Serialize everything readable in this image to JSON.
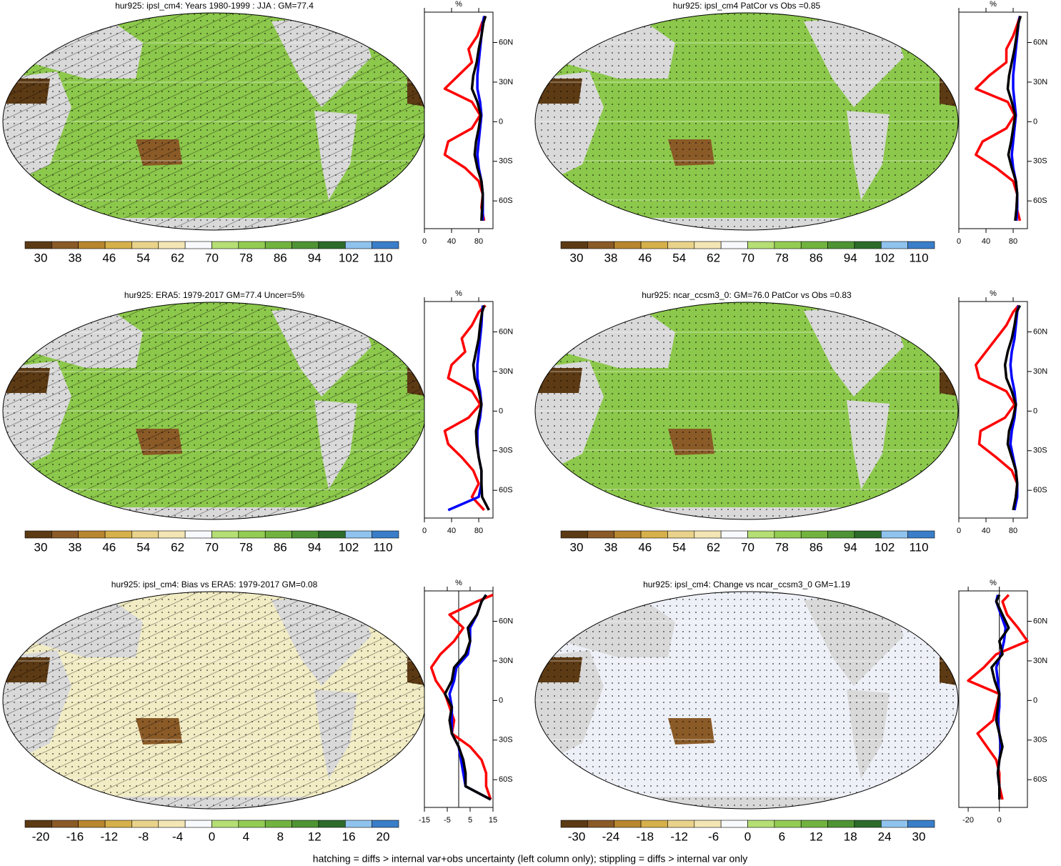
{
  "chart_data": [
    {
      "type": "map",
      "title": "hur925: ipsl_cm4: Years 1980-1999 : JJA : GM=77.4",
      "colorbar": {
        "ticks": [
          30,
          38,
          46,
          54,
          62,
          70,
          78,
          86,
          94,
          102,
          110
        ],
        "colors": [
          "#5c3a14",
          "#8a5a27",
          "#b8862e",
          "#d6b04a",
          "#e9d28a",
          "#f3e6b4",
          "#f7f9fc",
          "#b5df74",
          "#93cc52",
          "#72b340",
          "#4f9434",
          "#2d6b2a",
          "#8fc3ee",
          "#3a7ec9"
        ]
      }
    },
    {
      "type": "line",
      "ylabel": "%",
      "x": [
        -75,
        -65,
        -55,
        -45,
        -35,
        -25,
        -15,
        -5,
        5,
        15,
        25,
        35,
        45,
        55,
        65,
        75,
        80
      ],
      "xlim": [
        -81,
        83
      ],
      "xticks": [
        {
          "value": -60,
          "label": "60S"
        },
        {
          "value": -30,
          "label": "30S"
        },
        0,
        {
          "value": 30,
          "label": "30N"
        },
        {
          "value": 60,
          "label": "60N"
        }
      ],
      "ylim": [
        0,
        101
      ],
      "yticks": [
        0,
        40,
        80
      ],
      "series": [
        {
          "color": "#ff0000",
          "values": [
            88,
            84,
            86,
            80,
            60,
            30,
            35,
            70,
            82,
            70,
            30,
            50,
            70,
            65,
            78,
            85,
            90
          ]
        },
        {
          "color": "#0000ff",
          "values": [
            86,
            86,
            86,
            84,
            80,
            78,
            80,
            82,
            84,
            82,
            78,
            78,
            80,
            82,
            84,
            86,
            88
          ]
        },
        {
          "color": "#000000",
          "values": [
            84,
            85,
            86,
            84,
            78,
            74,
            76,
            80,
            83,
            78,
            70,
            72,
            77,
            80,
            84,
            87,
            90
          ]
        }
      ]
    },
    {
      "type": "map",
      "title": "hur925: ipsl_cm4 PatCor vs Obs =0.85",
      "colorbar": {
        "ticks": [
          30,
          38,
          46,
          54,
          62,
          70,
          78,
          86,
          94,
          102,
          110
        ],
        "colors": [
          "#5c3a14",
          "#8a5a27",
          "#b8862e",
          "#d6b04a",
          "#e9d28a",
          "#f3e6b4",
          "#f7f9fc",
          "#b5df74",
          "#93cc52",
          "#72b340",
          "#4f9434",
          "#2d6b2a",
          "#8fc3ee",
          "#3a7ec9"
        ]
      }
    },
    {
      "type": "line",
      "ylabel": "%",
      "x": [
        -75,
        -65,
        -55,
        -45,
        -35,
        -25,
        -15,
        -5,
        5,
        15,
        25,
        35,
        45,
        55,
        65,
        75,
        80
      ],
      "xlim": [
        -81,
        83
      ],
      "xticks": [
        {
          "value": -60,
          "label": "60S"
        },
        {
          "value": -30,
          "label": "30S"
        },
        0,
        {
          "value": 30,
          "label": "30N"
        },
        {
          "value": 60,
          "label": "60N"
        }
      ],
      "ylim": [
        0,
        101
      ],
      "yticks": [
        0,
        40,
        80
      ],
      "series": [
        {
          "color": "#ff0000",
          "values": [
            90,
            85,
            86,
            80,
            55,
            25,
            35,
            70,
            82,
            72,
            25,
            45,
            70,
            70,
            80,
            87,
            90
          ]
        },
        {
          "color": "#0000ff",
          "values": [
            85,
            86,
            86,
            84,
            80,
            78,
            80,
            82,
            84,
            82,
            80,
            80,
            82,
            84,
            86,
            88,
            90
          ]
        },
        {
          "color": "#000000",
          "values": [
            83,
            85,
            86,
            84,
            78,
            73,
            77,
            80,
            83,
            78,
            72,
            74,
            78,
            82,
            85,
            88,
            91
          ]
        }
      ]
    },
    {
      "type": "map",
      "title": "hur925: ERA5: 1979-2017 GM=77.4 Uncer=5%",
      "colorbar": {
        "ticks": [
          30,
          38,
          46,
          54,
          62,
          70,
          78,
          86,
          94,
          102,
          110
        ],
        "colors": [
          "#5c3a14",
          "#8a5a27",
          "#b8862e",
          "#d6b04a",
          "#e9d28a",
          "#f3e6b4",
          "#f7f9fc",
          "#b5df74",
          "#93cc52",
          "#72b340",
          "#4f9434",
          "#2d6b2a",
          "#8fc3ee",
          "#3a7ec9"
        ]
      }
    },
    {
      "type": "line",
      "ylabel": "%",
      "x": [
        -75,
        -65,
        -55,
        -45,
        -35,
        -25,
        -15,
        -5,
        5,
        15,
        25,
        35,
        45,
        55,
        65,
        75,
        80
      ],
      "xlim": [
        -81,
        83
      ],
      "xticks": [
        {
          "value": -60,
          "label": "60S"
        },
        {
          "value": -30,
          "label": "30S"
        },
        0,
        {
          "value": 30,
          "label": "30N"
        },
        {
          "value": 60,
          "label": "60N"
        }
      ],
      "ylim": [
        0,
        101
      ],
      "yticks": [
        0,
        40,
        80
      ],
      "series": [
        {
          "color": "#ff0000",
          "values": [
            88,
            70,
            80,
            72,
            55,
            35,
            30,
            65,
            82,
            70,
            35,
            40,
            60,
            55,
            70,
            80,
            90
          ]
        },
        {
          "color": "#0000ff",
          "values": [
            35,
            80,
            84,
            84,
            80,
            78,
            78,
            82,
            84,
            82,
            78,
            78,
            80,
            82,
            84,
            85,
            86
          ]
        },
        {
          "color": "#000000",
          "values": [
            95,
            85,
            84,
            84,
            80,
            77,
            76,
            80,
            84,
            80,
            74,
            72,
            76,
            80,
            82,
            85,
            88
          ]
        }
      ]
    },
    {
      "type": "map",
      "title": "hur925: ncar_ccsm3_0: GM=76.0 PatCor vs Obs =0.83",
      "colorbar": {
        "ticks": [
          30,
          38,
          46,
          54,
          62,
          70,
          78,
          86,
          94,
          102,
          110
        ],
        "colors": [
          "#5c3a14",
          "#8a5a27",
          "#b8862e",
          "#d6b04a",
          "#e9d28a",
          "#f3e6b4",
          "#f7f9fc",
          "#b5df74",
          "#93cc52",
          "#72b340",
          "#4f9434",
          "#2d6b2a",
          "#8fc3ee",
          "#3a7ec9"
        ]
      }
    },
    {
      "type": "line",
      "ylabel": "%",
      "x": [
        -75,
        -65,
        -55,
        -45,
        -35,
        -25,
        -15,
        -5,
        5,
        15,
        25,
        35,
        45,
        55,
        65,
        75,
        80
      ],
      "xlim": [
        -81,
        83
      ],
      "xticks": [
        {
          "value": -60,
          "label": "60S"
        },
        {
          "value": -30,
          "label": "30S"
        },
        0,
        {
          "value": 30,
          "label": "30N"
        },
        {
          "value": 60,
          "label": "60N"
        }
      ],
      "ylim": [
        0,
        101
      ],
      "yticks": [
        0,
        40,
        80
      ],
      "series": [
        {
          "color": "#ff0000",
          "values": [
            82,
            84,
            86,
            78,
            55,
            30,
            32,
            68,
            82,
            70,
            30,
            25,
            40,
            55,
            70,
            80,
            88
          ]
        },
        {
          "color": "#0000ff",
          "values": [
            82,
            86,
            86,
            84,
            80,
            76,
            78,
            82,
            84,
            82,
            78,
            76,
            78,
            82,
            84,
            86,
            88
          ]
        },
        {
          "color": "#000000",
          "values": [
            80,
            84,
            86,
            84,
            78,
            72,
            74,
            80,
            84,
            78,
            70,
            68,
            72,
            78,
            82,
            85,
            90
          ]
        }
      ]
    },
    {
      "type": "map",
      "title": "hur925: ipsl_cm4: Bias vs ERA5: 1979-2017 GM=0.08",
      "colorbar": {
        "ticks": [
          -20,
          -16,
          -12,
          -8,
          -4,
          0,
          4,
          8,
          12,
          16,
          20
        ],
        "colors": [
          "#5c3a14",
          "#8a5a27",
          "#b8862e",
          "#d6b04a",
          "#e9d28a",
          "#f3e6b4",
          "#f7f9fc",
          "#b5df74",
          "#93cc52",
          "#72b340",
          "#4f9434",
          "#2d6b2a",
          "#8fc3ee",
          "#3a7ec9"
        ]
      }
    },
    {
      "type": "line",
      "ylabel": "%",
      "zero_line": true,
      "x": [
        -75,
        -65,
        -55,
        -45,
        -35,
        -25,
        -15,
        -5,
        5,
        15,
        25,
        35,
        45,
        55,
        65,
        75,
        80
      ],
      "xlim": [
        -81,
        83
      ],
      "xticks": [
        {
          "value": -60,
          "label": "60S"
        },
        {
          "value": -30,
          "label": "30S"
        },
        0,
        {
          "value": 30,
          "label": "30N"
        },
        {
          "value": 60,
          "label": "60N"
        }
      ],
      "ylim": [
        -15,
        15
      ],
      "yticks": [
        -15,
        -5,
        5,
        15
      ],
      "series": [
        {
          "color": "#ff0000",
          "values": [
            14,
            12,
            12,
            10,
            5,
            -3,
            -2,
            -4,
            -6,
            -10,
            -12,
            -8,
            -2,
            2,
            -4,
            8,
            15
          ]
        },
        {
          "color": "#0000ff",
          "values": [
            14,
            3,
            2,
            1,
            0,
            -3,
            -3,
            -3,
            -4,
            -2,
            -1,
            4,
            5,
            5,
            8,
            10,
            12
          ]
        },
        {
          "color": "#000000",
          "values": [
            14,
            3,
            3,
            2,
            0,
            -3,
            -4,
            -3,
            -6,
            -3,
            -2,
            3,
            5,
            4,
            8,
            10,
            12
          ]
        }
      ]
    },
    {
      "type": "map",
      "title": "hur925: ipsl_cm4: Change vs ncar_ccsm3_0 GM=1.19",
      "colorbar": {
        "ticks": [
          -30,
          -24,
          -18,
          -12,
          -6,
          0,
          6,
          12,
          18,
          24,
          30
        ],
        "colors": [
          "#5c3a14",
          "#8a5a27",
          "#b8862e",
          "#d6b04a",
          "#e9d28a",
          "#f3e6b4",
          "#f7f9fc",
          "#b5df74",
          "#93cc52",
          "#72b340",
          "#4f9434",
          "#2d6b2a",
          "#8fc3ee",
          "#3a7ec9"
        ]
      }
    },
    {
      "type": "line",
      "ylabel": "%",
      "zero_line": true,
      "x": [
        -75,
        -65,
        -55,
        -45,
        -35,
        -25,
        -15,
        -5,
        5,
        15,
        25,
        35,
        45,
        55,
        65,
        75,
        80
      ],
      "xlim": [
        -81,
        83
      ],
      "xticks": [
        {
          "value": -60,
          "label": "60S"
        },
        {
          "value": -30,
          "label": "30S"
        },
        0,
        {
          "value": 30,
          "label": "30N"
        },
        {
          "value": 60,
          "label": "60N"
        }
      ],
      "ylim": [
        -26,
        18
      ],
      "yticks": [
        -20,
        0
      ],
      "series": [
        {
          "color": "#ff0000",
          "values": [
            2,
            0,
            0,
            -2,
            -8,
            -14,
            -4,
            -2,
            0,
            -20,
            -10,
            -2,
            18,
            12,
            5,
            2,
            6
          ]
        },
        {
          "color": "#0000ff",
          "values": [
            0,
            0,
            -1,
            0,
            1,
            0,
            -1,
            0,
            0,
            -1,
            -2,
            1,
            3,
            4,
            1,
            -2,
            -1
          ]
        },
        {
          "color": "#000000",
          "values": [
            0,
            0,
            -1,
            0,
            2,
            0,
            -2,
            -1,
            0,
            -3,
            -5,
            2,
            0,
            6,
            2,
            -2,
            0
          ]
        }
      ]
    }
  ],
  "footer": "hatching = diffs > internal var+obs uncertainty (left column only); stippling = diffs > internal var only"
}
